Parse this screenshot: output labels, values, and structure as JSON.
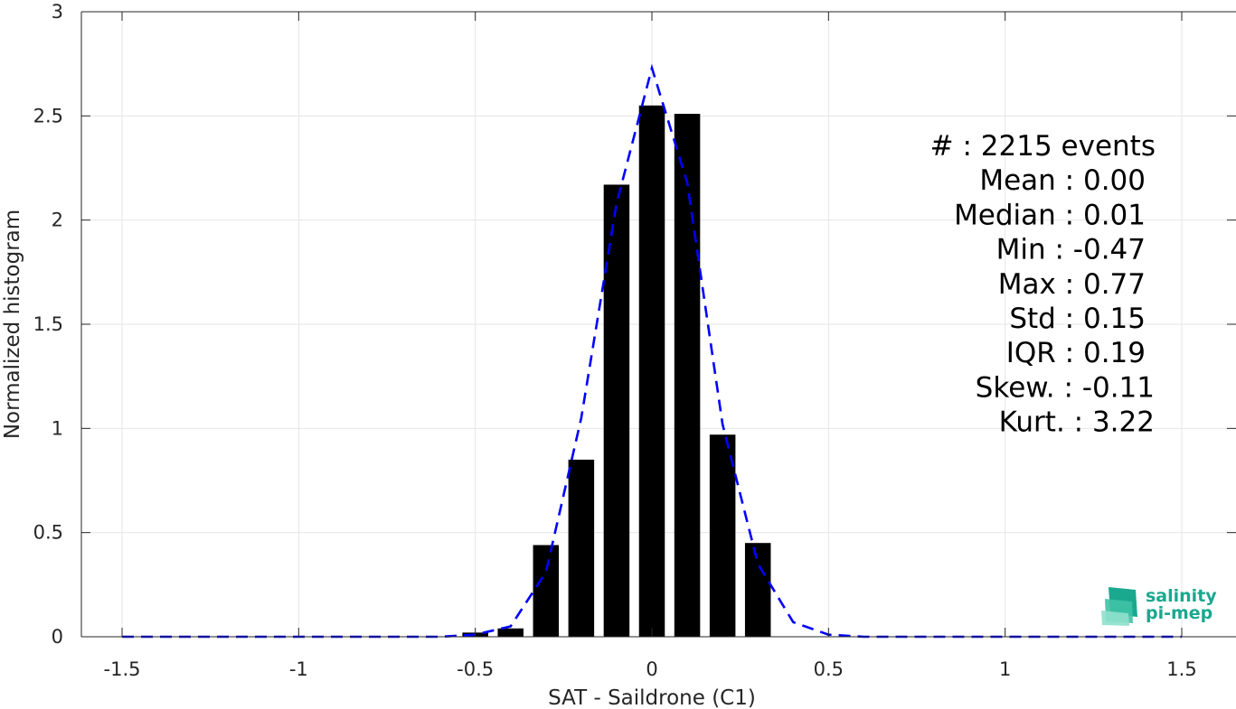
{
  "chart_data": {
    "type": "bar",
    "xlabel": "SAT - Saildrone (C1)",
    "ylabel": "Normalized histogram",
    "xlim": [
      -1.5,
      1.5
    ],
    "ylim": [
      0,
      3
    ],
    "x_ticks": [
      -1.5,
      -1,
      -0.5,
      0,
      0.5,
      1,
      1.5
    ],
    "x_tick_labels": [
      "-1.5",
      "-1",
      "-0.5",
      "0",
      "0.5",
      "1",
      "1.5"
    ],
    "y_ticks": [
      0,
      0.5,
      1,
      1.5,
      2,
      2.5,
      3
    ],
    "y_tick_labels": [
      "0",
      "0.5",
      "1",
      "1.5",
      "2",
      "2.5",
      "3"
    ],
    "grid": true,
    "bar_color": "#000000",
    "bars": {
      "x": [
        -0.5,
        -0.4,
        -0.3,
        -0.2,
        -0.1,
        0.0,
        0.1,
        0.2,
        0.3
      ],
      "values": [
        0.02,
        0.04,
        0.44,
        0.85,
        2.17,
        2.55,
        2.51,
        0.97,
        0.45
      ]
    },
    "fit_curve": {
      "style": "dashed",
      "color": "#0000ff",
      "x": [
        -1.5,
        -1.4,
        -1.3,
        -1.2,
        -1.1,
        -1.0,
        -0.9,
        -0.8,
        -0.7,
        -0.6,
        -0.5,
        -0.4,
        -0.3,
        -0.2,
        -0.1,
        0.0,
        0.1,
        0.2,
        0.3,
        0.4,
        0.5,
        0.6,
        0.7,
        0.8,
        0.9,
        1.0,
        1.1,
        1.2,
        1.3,
        1.4,
        1.5
      ],
      "y": [
        0,
        0,
        0,
        0,
        0,
        0,
        0,
        0,
        0,
        0,
        0.01,
        0.05,
        0.31,
        1.05,
        2.08,
        2.73,
        2.18,
        1.02,
        0.35,
        0.07,
        0.01,
        0,
        0,
        0,
        0,
        0,
        0,
        0,
        0,
        0,
        0
      ]
    },
    "stats": [
      {
        "label": "#  : 2215 events"
      },
      {
        "label": "Mean : 0.00"
      },
      {
        "label": "Median : 0.01"
      },
      {
        "label": "Min : -0.47"
      },
      {
        "label": "Max : 0.77"
      },
      {
        "label": "Std : 0.15"
      },
      {
        "label": "IQR : 0.19"
      },
      {
        "label": "Skew. : -0.11"
      },
      {
        "label": "Kurt. : 3.22"
      }
    ]
  },
  "logo": {
    "line1": "salinity",
    "line2": "pi-mep",
    "color": "#1aa88f"
  }
}
